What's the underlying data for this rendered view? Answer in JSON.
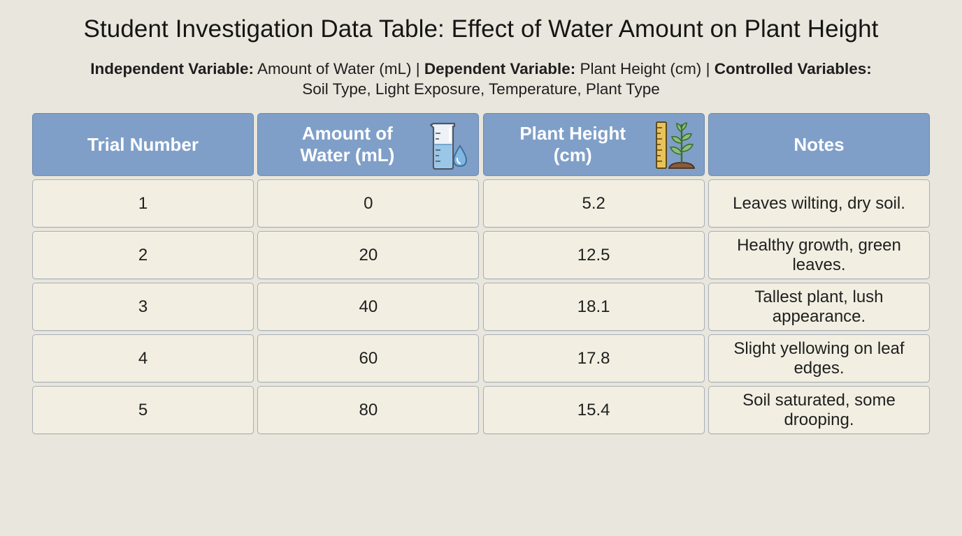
{
  "title": "Student Investigation Data Table: Effect of Water Amount on Plant Height",
  "variables": {
    "independent_label": "Independent Variable:",
    "independent_value": "Amount of Water (mL)",
    "separator_1": "|",
    "dependent_label": "Dependent Variable:",
    "dependent_value": "Plant Height (cm)",
    "separator_2": "|",
    "controlled_label": "Controlled Variables:",
    "controlled_value": "Soil Type, Light Exposure, Temperature, Plant Type"
  },
  "table": {
    "headers": [
      {
        "label": "Trial Number",
        "icon": null
      },
      {
        "label": "Amount of Water (mL)",
        "icon": "beaker-with-water-drop-icon"
      },
      {
        "label": "Plant Height (cm)",
        "icon": "ruler-with-plant-icon"
      },
      {
        "label": "Notes",
        "icon": null
      }
    ],
    "rows": [
      {
        "trial": "1",
        "water": "0",
        "height": "5.2",
        "notes": "Leaves wilting, dry soil."
      },
      {
        "trial": "2",
        "water": "20",
        "height": "12.5",
        "notes": "Healthy growth, green leaves."
      },
      {
        "trial": "3",
        "water": "40",
        "height": "18.1",
        "notes": "Tallest plant, lush appearance."
      },
      {
        "trial": "4",
        "water": "60",
        "height": "17.8",
        "notes": "Slight yellowing on leaf edges."
      },
      {
        "trial": "5",
        "water": "80",
        "height": "15.4",
        "notes": "Soil saturated, some drooping."
      }
    ]
  },
  "colors": {
    "background": "#e9e7dd",
    "header_fill": "#7f9fc8",
    "cell_fill": "#f2efe2",
    "cell_border": "#a9aeb8"
  }
}
